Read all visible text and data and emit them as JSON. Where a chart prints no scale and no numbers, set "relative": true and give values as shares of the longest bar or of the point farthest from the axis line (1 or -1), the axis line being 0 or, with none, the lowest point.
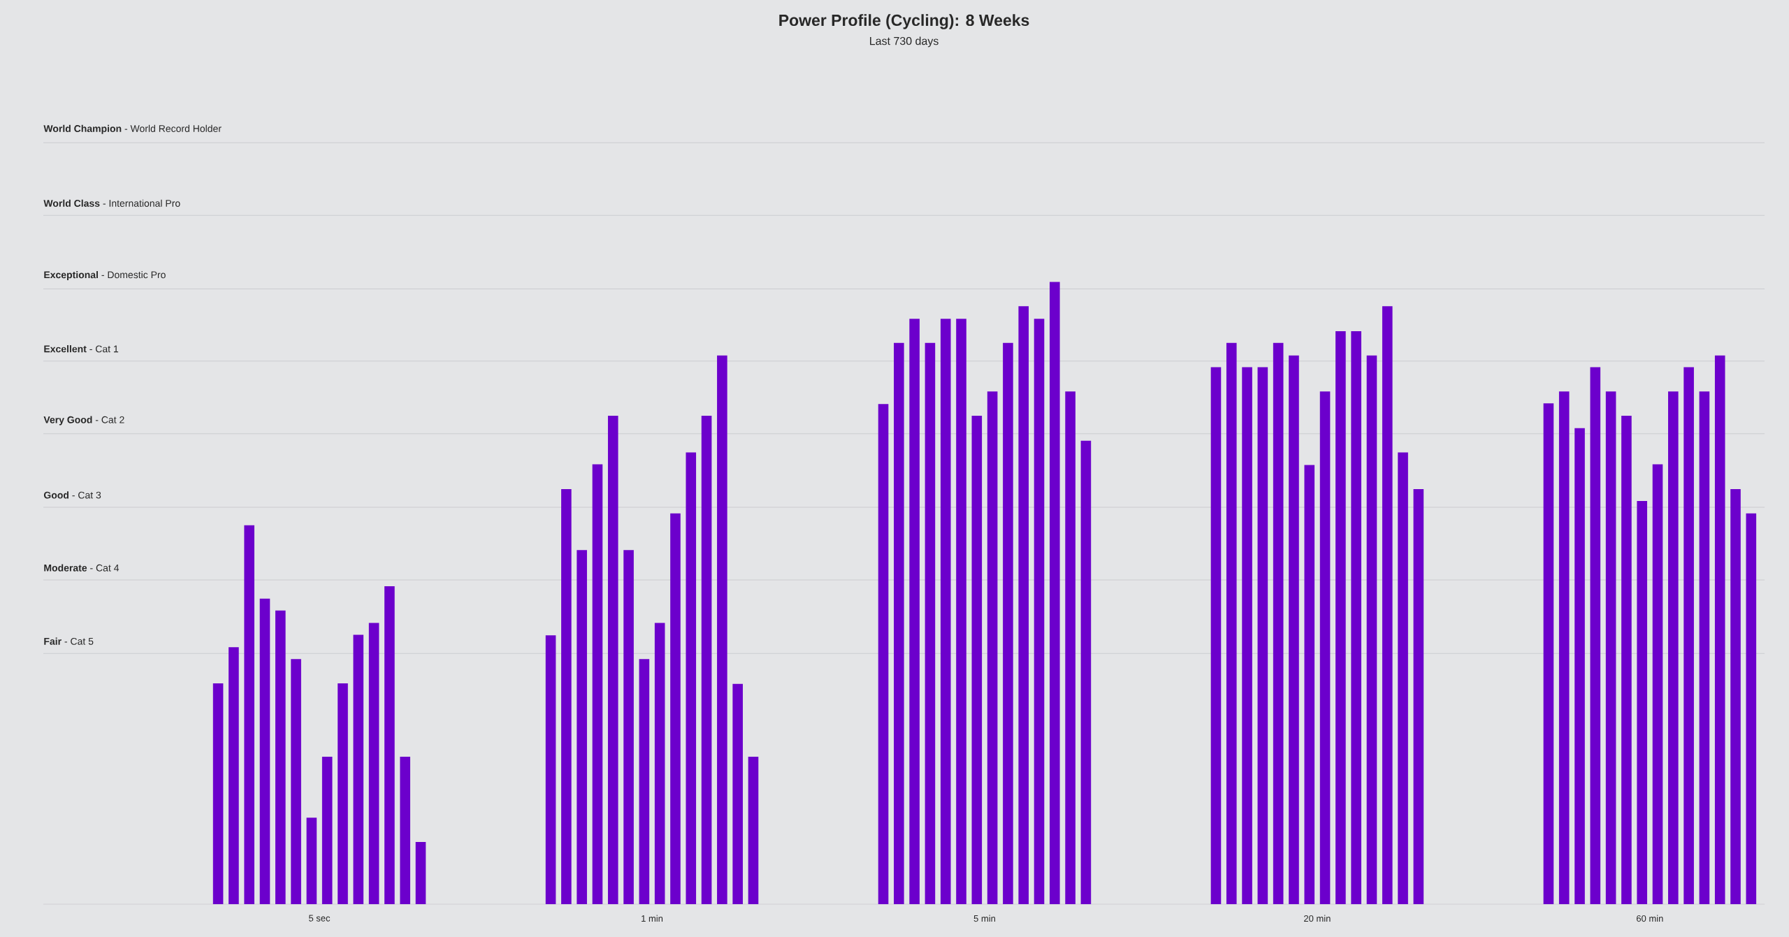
{
  "chart_data": {
    "type": "bar",
    "title": "Power Profile (Cycling): 8 Weeks",
    "subtitle": "Last 730 days",
    "categories": [
      "5 sec",
      "1 min",
      "5 min",
      "20 min",
      "60 min"
    ],
    "relative": true,
    "series": [
      {
        "color": "#6c00cc",
        "values": [
          0.355,
          0.432,
          0.804,
          0.863,
          0.805
        ]
      },
      {
        "color": "#6c00cc",
        "values": [
          0.413,
          0.667,
          0.902,
          0.902,
          0.824
        ]
      },
      {
        "color": "#6c00cc",
        "values": [
          0.609,
          0.569,
          0.941,
          0.863,
          0.765
        ]
      },
      {
        "color": "#6c00cc",
        "values": [
          0.491,
          0.707,
          0.902,
          0.863,
          0.863
        ]
      },
      {
        "color": "#6c00cc",
        "values": [
          0.472,
          0.785,
          0.941,
          0.902,
          0.824
        ]
      },
      {
        "color": "#6c00cc",
        "values": [
          0.394,
          0.569,
          0.941,
          0.882,
          0.785
        ]
      },
      {
        "color": "#6c00cc",
        "values": [
          0.139,
          0.394,
          0.785,
          0.706,
          0.648
        ]
      },
      {
        "color": "#6c00cc",
        "values": [
          0.237,
          0.452,
          0.824,
          0.824,
          0.707
        ]
      },
      {
        "color": "#6c00cc",
        "values": [
          0.355,
          0.628,
          0.902,
          0.921,
          0.824
        ]
      },
      {
        "color": "#6c00cc",
        "values": [
          0.433,
          0.726,
          0.961,
          0.921,
          0.863
        ]
      },
      {
        "color": "#6c00cc",
        "values": [
          0.452,
          0.785,
          0.941,
          0.882,
          0.824
        ]
      },
      {
        "color": "#6c00cc",
        "values": [
          0.511,
          0.882,
          1.0,
          0.961,
          0.882
        ]
      },
      {
        "color": "#6c00cc",
        "values": [
          0.237,
          0.354,
          0.824,
          0.726,
          0.667
        ]
      },
      {
        "color": "#6c00cc",
        "values": [
          0.1,
          0.237,
          0.745,
          0.667,
          0.628
        ]
      }
    ],
    "ref_lines": [
      {
        "axis": "y",
        "value": 0.403,
        "label": "**Fair** - Cat 5",
        "color": "#cbccd0"
      },
      {
        "axis": "y",
        "value": 0.521,
        "label": "**Moderate** - Cat 4",
        "color": "#cbccd0"
      },
      {
        "axis": "y",
        "value": 0.638,
        "label": "**Good** - Cat 3",
        "color": "#cbccd0"
      },
      {
        "axis": "y",
        "value": 0.756,
        "label": "**Very Good** - Cat 2",
        "color": "#cbccd0"
      },
      {
        "axis": "y",
        "value": 0.873,
        "label": "**Excellent** - Cat 1",
        "color": "#cbccd0"
      },
      {
        "axis": "y",
        "value": 0.989,
        "label": "**Exceptional** - Domestic Pro",
        "color": "#cbccd0"
      },
      {
        "axis": "y",
        "value": 1.107,
        "label": "**World Class** - International Pro",
        "color": "#cbccd0"
      },
      {
        "axis": "y",
        "value": 1.224,
        "label": "**World Champion** - World Record Holder",
        "color": "#cbccd0"
      }
    ]
  }
}
